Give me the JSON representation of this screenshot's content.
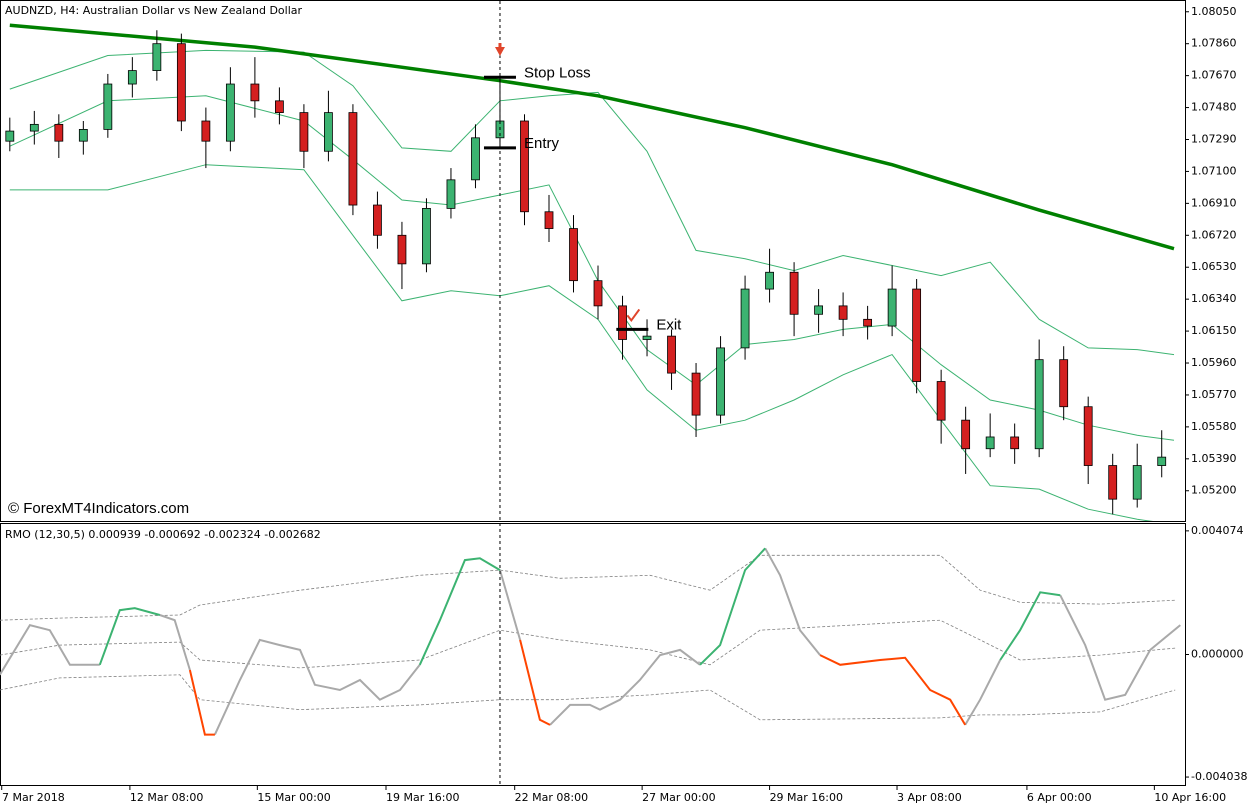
{
  "chart_data": [
    {
      "type": "candlestick",
      "title": "AUDNZD, H4:  Australian Dollar vs New Zealand Dollar",
      "watermark": "© ForexMT4Indicators.com",
      "up_color": "#3cb371",
      "down_color": "#d42020",
      "xlim": [
        -0.4,
        47.95
      ],
      "ylim": [
        1.0502,
        1.0812
      ],
      "yticks": [
        {
          "value": 1.0805,
          "label": "1.08050"
        },
        {
          "value": 1.0786,
          "label": "1.07860"
        },
        {
          "value": 1.0767,
          "label": "1.07670"
        },
        {
          "value": 1.0748,
          "label": "1.07480"
        },
        {
          "value": 1.0729,
          "label": "1.07290"
        },
        {
          "value": 1.071,
          "label": "1.07100"
        },
        {
          "value": 1.0691,
          "label": "1.06910"
        },
        {
          "value": 1.0672,
          "label": "1.06720"
        },
        {
          "value": 1.0653,
          "label": "1.06530"
        },
        {
          "value": 1.0634,
          "label": "1.06340"
        },
        {
          "value": 1.0615,
          "label": "1.06150"
        },
        {
          "value": 1.0596,
          "label": "1.05960"
        },
        {
          "value": 1.0577,
          "label": "1.05770"
        },
        {
          "value": 1.0558,
          "label": "1.05580"
        },
        {
          "value": 1.0539,
          "label": "1.05390"
        },
        {
          "value": 1.052,
          "label": "1.05200"
        }
      ],
      "open": [
        1.0728,
        1.0734,
        1.0738,
        1.0728,
        1.0735,
        1.0762,
        1.077,
        1.0786,
        1.074,
        1.0728,
        1.0762,
        1.0752,
        1.0745,
        1.0722,
        1.0745,
        1.069,
        1.0672,
        1.0655,
        1.0688,
        1.0705,
        1.073,
        1.074,
        1.0686,
        1.0676,
        1.0645,
        1.063,
        1.061,
        1.0612,
        1.059,
        1.0565,
        1.0605,
        1.064,
        1.065,
        1.0625,
        1.063,
        1.0622,
        1.0618,
        1.064,
        1.0585,
        1.0562,
        1.0545,
        1.0552,
        1.0545,
        1.0598,
        1.057,
        1.0535,
        1.0515,
        1.0535
      ],
      "high": [
        1.0742,
        1.0746,
        1.0744,
        1.074,
        1.0768,
        1.0778,
        1.0794,
        1.0792,
        1.0748,
        1.0772,
        1.0778,
        1.076,
        1.075,
        1.0758,
        1.075,
        1.0698,
        1.068,
        1.0694,
        1.0712,
        1.0738,
        1.0766,
        1.0744,
        1.0696,
        1.0684,
        1.0654,
        1.0636,
        1.0622,
        1.0616,
        1.0596,
        1.0612,
        1.0648,
        1.0664,
        1.0656,
        1.064,
        1.0638,
        1.063,
        1.0654,
        1.0646,
        1.0592,
        1.057,
        1.0566,
        1.056,
        1.061,
        1.0606,
        1.0576,
        1.0542,
        1.0548,
        1.0556
      ],
      "low": [
        1.0722,
        1.0726,
        1.0718,
        1.072,
        1.073,
        1.0754,
        1.0764,
        1.0734,
        1.0712,
        1.0722,
        1.0742,
        1.0738,
        1.0712,
        1.0716,
        1.0684,
        1.0664,
        1.064,
        1.065,
        1.0682,
        1.07,
        1.0724,
        1.0678,
        1.0668,
        1.0638,
        1.0622,
        1.0598,
        1.06,
        1.058,
        1.0552,
        1.056,
        1.0598,
        1.0632,
        1.0612,
        1.0614,
        1.0612,
        1.061,
        1.0612,
        1.0578,
        1.0548,
        1.053,
        1.054,
        1.0536,
        1.054,
        1.0562,
        1.0524,
        1.0506,
        1.051,
        1.0528
      ],
      "close": [
        1.0734,
        1.0738,
        1.0728,
        1.0735,
        1.0762,
        1.077,
        1.0786,
        1.074,
        1.0728,
        1.0762,
        1.0752,
        1.0745,
        1.0722,
        1.0745,
        1.069,
        1.0672,
        1.0655,
        1.0688,
        1.0705,
        1.073,
        1.074,
        1.0686,
        1.0676,
        1.0645,
        1.063,
        1.061,
        1.0612,
        1.059,
        1.0565,
        1.0605,
        1.064,
        1.065,
        1.0625,
        1.063,
        1.0622,
        1.0618,
        1.064,
        1.0585,
        1.0562,
        1.0545,
        1.0552,
        1.0545,
        1.0598,
        1.057,
        1.0535,
        1.0515,
        1.0535,
        1.054
      ],
      "lines": [
        {
          "color": "#3cb371",
          "line_width": 1,
          "x": [
            0,
            4,
            8,
            12,
            14,
            16,
            18,
            20,
            22,
            24,
            26,
            28,
            30,
            32,
            34,
            36,
            38,
            40,
            42,
            44,
            46,
            47.5
          ],
          "values": [
            1.0759,
            1.0779,
            1.0782,
            1.0781,
            1.0761,
            1.0724,
            1.0722,
            1.0752,
            1.0755,
            1.0757,
            1.0722,
            1.0663,
            1.0658,
            1.0651,
            1.066,
            1.0654,
            1.0648,
            1.0656,
            1.0622,
            1.0605,
            1.0604,
            1.0601
          ]
        },
        {
          "color": "#3cb371",
          "line_width": 1,
          "x": [
            0,
            4,
            8,
            12,
            14,
            16,
            18,
            20,
            22,
            24,
            26,
            28,
            30,
            32,
            34,
            36,
            38,
            40,
            42,
            44,
            46,
            47.5
          ],
          "values": [
            1.0725,
            1.0752,
            1.0755,
            1.074,
            1.0717,
            1.0693,
            1.069,
            1.0696,
            1.0702,
            1.0645,
            1.0604,
            1.0583,
            1.0607,
            1.061,
            1.0616,
            1.0619,
            1.0595,
            1.0574,
            1.0568,
            1.0559,
            1.0553,
            1.055
          ]
        },
        {
          "color": "#3cb371",
          "line_width": 1,
          "x": [
            0,
            4,
            8,
            12,
            14,
            16,
            18,
            20,
            22,
            24,
            26,
            28,
            30,
            32,
            34,
            36,
            38,
            40,
            42,
            44,
            46,
            47.5
          ],
          "values": [
            1.0699,
            1.0699,
            1.0714,
            1.0711,
            1.0672,
            1.0633,
            1.0639,
            1.0636,
            1.0642,
            1.0622,
            1.058,
            1.0556,
            1.0562,
            1.0574,
            1.0589,
            1.0601,
            1.0562,
            1.0523,
            1.0521,
            1.0509,
            1.0503,
            1.05
          ]
        },
        {
          "color": "#008000",
          "line_width": 3.5,
          "x": [
            0,
            10,
            20,
            24,
            30,
            36,
            42,
            47.5
          ],
          "values": [
            1.0797,
            1.0784,
            1.0764,
            1.0755,
            1.0736,
            1.0714,
            1.0687,
            1.0664
          ]
        }
      ],
      "annotations": [
        {
          "text": "Stop Loss",
          "x": 20,
          "value": 1.0766
        },
        {
          "text": "Entry",
          "x": 20,
          "value": 1.0724
        },
        {
          "text": "Exit",
          "x": 25.4,
          "value": 1.0616
        }
      ]
    },
    {
      "type": "line",
      "title": "RMO (12,30,5) 0.000939 -0.000692 -0.002324 -0.002682",
      "xlim": [
        -0.4,
        47.95
      ],
      "ylim": [
        -0.0043,
        0.0043
      ],
      "yticks": [
        0.004074,
        {
          "value": 0,
          "label": "0.000000"
        },
        -0.004038
      ],
      "xticks": [
        {
          "value": -0.33,
          "label": "7 Mar 2018"
        },
        {
          "value": 4.9,
          "label": "12 Mar 08:00"
        },
        {
          "value": 10.1,
          "label": "15 Mar 00:00"
        },
        {
          "value": 15.35,
          "label": "19 Mar 16:00"
        },
        {
          "value": 20.6,
          "label": "22 Mar 08:00"
        },
        {
          "value": 25.8,
          "label": "27 Mar 00:00"
        },
        {
          "value": 31,
          "label": "29 Mar 16:00"
        },
        {
          "value": 36.2,
          "label": "3 Apr 08:00"
        },
        {
          "value": 41.5,
          "label": "6 Apr 00:00"
        },
        {
          "value": 46.7,
          "label": "10 Apr 16:00"
        }
      ],
      "x": [
        -0.41,
        0.82,
        1.63,
        2.45,
        3.67,
        4.49,
        5.1,
        6.12,
        6.73,
        7.35,
        7.96,
        8.37,
        9.39,
        10.2,
        11.02,
        11.84,
        12.45,
        13.47,
        14.29,
        15.1,
        15.92,
        16.73,
        17.55,
        18.57,
        19.18,
        20,
        20.82,
        21.63,
        22.04,
        22.86,
        23.67,
        24.08,
        24.9,
        25.71,
        26.53,
        27.35,
        28.16,
        28.98,
        30,
        30.82,
        31.43,
        32.24,
        33.06,
        33.88,
        35.51,
        36.53,
        37.55,
        38.37,
        38.98,
        39.59,
        40.41,
        41.22,
        42.04,
        42.86,
        43.88,
        44.69,
        45.51,
        46.53,
        47.76
      ],
      "series": [
        {
          "color": "#808080",
          "dash": true,
          "x": [
            -0.41,
            2.04,
            6.94,
            7.76,
            11.84,
            16.73,
            20,
            22.45,
            26.12,
            28.57,
            30.61,
            37.96,
            39.59,
            41.22,
            44.49,
            47.55
          ],
          "values": [
            0.00113,
            0.0012,
            0.0013,
            0.00163,
            0.00212,
            0.00261,
            0.00278,
            0.00251,
            0.00261,
            0.00212,
            0.00327,
            0.00327,
            0.00212,
            0.00172,
            0.00166,
            0.00179
          ]
        },
        {
          "color": "#808080",
          "dash": true,
          "x": [
            -0.41,
            2.04,
            6.94,
            7.76,
            11.84,
            16.73,
            20,
            22.45,
            26.12,
            28.57,
            30.61,
            37.96,
            39.59,
            41.22,
            44.49,
            47.55
          ],
          "values": [
            -2e-05,
            0.00031,
            0.00041,
            -0.00018,
            -0.00044,
            -0.00018,
            0.0008,
            0.00048,
            0.00015,
            -0.00034,
            0.0008,
            0.00113,
            0.00048,
            -0.00018,
            -2e-05,
            0.00021
          ]
        },
        {
          "color": "#808080",
          "dash": true,
          "x": [
            -0.41,
            2.04,
            6.94,
            7.76,
            11.84,
            16.73,
            20,
            22.45,
            26.12,
            28.57,
            30.61,
            37.96,
            39.59,
            41.22,
            44.49,
            47.55
          ],
          "values": [
            -0.00117,
            -0.00077,
            -0.00067,
            -0.00149,
            -0.00182,
            -0.00166,
            -0.00149,
            -0.00149,
            -0.00133,
            -0.00117,
            -0.00215,
            -0.00209,
            -0.00199,
            -0.00199,
            -0.00189,
            -0.00117
          ]
        },
        {
          "color": "#a9a9a9",
          "values": [
            -0.00067,
            0.00097,
            0.0008,
            -0.00034,
            -0.00034,
            null,
            null,
            0.0013,
            0.00113,
            -0.00051,
            null,
            -0.00264,
            -0.00084,
            0.00048,
            0.00031,
            0.00015,
            -0.001,
            -0.00117,
            -0.00084,
            -0.00149,
            -0.00117,
            -0.00034,
            null,
            null,
            null,
            0.00278,
            0.00048,
            null,
            -0.00232,
            -0.00166,
            -0.00166,
            -0.00182,
            -0.00149,
            -0.00084,
            -2e-05,
            0.00015,
            -0.00034,
            null,
            null,
            0.0035,
            0.00261,
            0.0008,
            -2e-05,
            null,
            null,
            null,
            null,
            null,
            -0.00232,
            -0.00149,
            -0.00018,
            null,
            null,
            0.00195,
            0.00031,
            -0.00149,
            -0.00133,
            0.00015,
            0.00097
          ]
        },
        {
          "color": "#3cb371",
          "values": [
            null,
            null,
            null,
            null,
            -0.00034,
            0.00146,
            0.00153,
            0.0013,
            null,
            null,
            null,
            null,
            null,
            null,
            null,
            null,
            null,
            null,
            null,
            null,
            null,
            -0.00034,
            0.00113,
            0.00311,
            0.00317,
            0.00278,
            null,
            null,
            null,
            null,
            null,
            null,
            null,
            null,
            null,
            null,
            -0.00034,
            0.00031,
            0.00278,
            0.0035,
            null,
            null,
            null,
            null,
            null,
            null,
            null,
            null,
            null,
            null,
            -0.00018,
            0.0008,
            0.00205,
            0.00195,
            null,
            null,
            null,
            null,
            null
          ]
        },
        {
          "color": "#ff4500",
          "values": [
            null,
            null,
            null,
            null,
            null,
            null,
            null,
            null,
            null,
            -0.00051,
            -0.00264,
            -0.00264,
            null,
            null,
            null,
            null,
            null,
            null,
            null,
            null,
            null,
            null,
            null,
            null,
            null,
            null,
            0.00048,
            -0.00215,
            -0.00232,
            null,
            null,
            null,
            null,
            null,
            null,
            null,
            null,
            null,
            null,
            null,
            null,
            null,
            -2e-05,
            -0.00034,
            -0.00018,
            -0.00011,
            -0.00117,
            -0.00149,
            -0.00232,
            null,
            null,
            null,
            null,
            null,
            null,
            null,
            null,
            null,
            null
          ]
        }
      ]
    }
  ]
}
